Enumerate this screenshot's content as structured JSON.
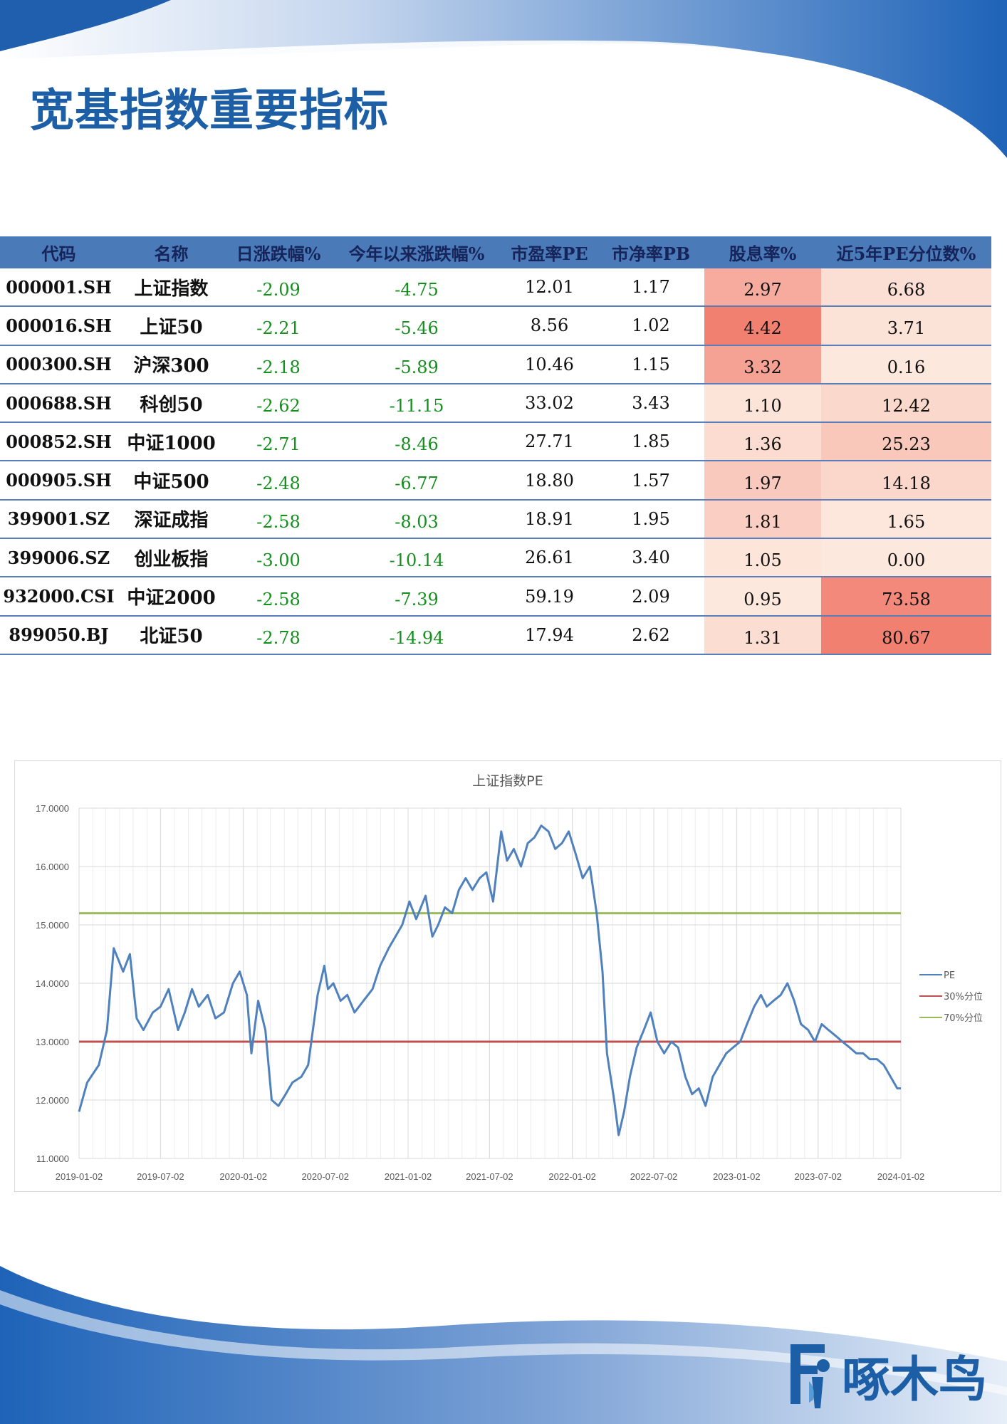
{
  "page": {
    "title": "宽基指数重要指标",
    "brand": "啄木鸟"
  },
  "table": {
    "headers": [
      "代码",
      "名称",
      "日涨跌幅%",
      "今年以来涨跌幅%",
      "市盈率PE",
      "市净率PB",
      "股息率%",
      "近5年PE分位数%"
    ],
    "rows": [
      {
        "code": "000001.SH",
        "name": "上证指数",
        "daily": "-2.09",
        "ytd": "-4.75",
        "pe": "12.01",
        "pb": "1.17",
        "div": "2.97",
        "pct": "6.68"
      },
      {
        "code": "000016.SH",
        "name": "上证50",
        "daily": "-2.21",
        "ytd": "-5.46",
        "pe": "8.56",
        "pb": "1.02",
        "div": "4.42",
        "pct": "3.71"
      },
      {
        "code": "000300.SH",
        "name": "沪深300",
        "daily": "-2.18",
        "ytd": "-5.89",
        "pe": "10.46",
        "pb": "1.15",
        "div": "3.32",
        "pct": "0.16"
      },
      {
        "code": "000688.SH",
        "name": "科创50",
        "daily": "-2.62",
        "ytd": "-11.15",
        "pe": "33.02",
        "pb": "3.43",
        "div": "1.10",
        "pct": "12.42"
      },
      {
        "code": "000852.SH",
        "name": "中证1000",
        "daily": "-2.71",
        "ytd": "-8.46",
        "pe": "27.71",
        "pb": "1.85",
        "div": "1.36",
        "pct": "25.23"
      },
      {
        "code": "000905.SH",
        "name": "中证500",
        "daily": "-2.48",
        "ytd": "-6.77",
        "pe": "18.80",
        "pb": "1.57",
        "div": "1.97",
        "pct": "14.18"
      },
      {
        "code": "399001.SZ",
        "name": "深证成指",
        "daily": "-2.58",
        "ytd": "-8.03",
        "pe": "18.91",
        "pb": "1.95",
        "div": "1.81",
        "pct": "1.65"
      },
      {
        "code": "399006.SZ",
        "name": "创业板指",
        "daily": "-3.00",
        "ytd": "-10.14",
        "pe": "26.61",
        "pb": "3.40",
        "div": "1.05",
        "pct": "0.00"
      },
      {
        "code": "932000.CSI",
        "name": "中证2000",
        "daily": "-2.58",
        "ytd": "-7.39",
        "pe": "59.19",
        "pb": "2.09",
        "div": "0.95",
        "pct": "73.58"
      },
      {
        "code": "899050.BJ",
        "name": "北证50",
        "daily": "-2.78",
        "ytd": "-14.94",
        "pe": "17.94",
        "pb": "2.62",
        "div": "1.31",
        "pct": "80.67"
      }
    ]
  },
  "colors": {
    "brand_blue": "#1d5fa6",
    "header_blue": "#4a7ab8",
    "negative_green": "#15901e",
    "heat_low": "#fde6dc",
    "heat_high": "#f28070"
  },
  "chart_data": {
    "type": "line",
    "title": "上证指数PE",
    "xlabel": "",
    "ylabel": "",
    "ylim": [
      11,
      17
    ],
    "y_ticks": [
      "11.0000",
      "12.0000",
      "13.0000",
      "14.0000",
      "15.0000",
      "16.0000",
      "17.0000"
    ],
    "x_ticks": [
      "2019-01-02",
      "2019-07-02",
      "2020-01-02",
      "2020-07-02",
      "2021-01-02",
      "2021-07-02",
      "2022-01-02",
      "2022-07-02",
      "2023-01-02",
      "2023-07-02",
      "2024-01-02"
    ],
    "legend_position": "right",
    "grid": true,
    "series": [
      {
        "name": "PE",
        "color": "#4f81bd",
        "x": [
          "2019-01-02",
          "2019-01-20",
          "2019-02-15",
          "2019-03-05",
          "2019-03-20",
          "2019-04-10",
          "2019-04-25",
          "2019-05-10",
          "2019-05-25",
          "2019-06-15",
          "2019-07-02",
          "2019-07-20",
          "2019-08-10",
          "2019-08-25",
          "2019-09-10",
          "2019-09-25",
          "2019-10-15",
          "2019-11-01",
          "2019-11-20",
          "2019-12-10",
          "2019-12-25",
          "2020-01-10",
          "2020-01-20",
          "2020-02-04",
          "2020-02-20",
          "2020-03-05",
          "2020-03-20",
          "2020-04-05",
          "2020-04-20",
          "2020-05-10",
          "2020-05-25",
          "2020-06-15",
          "2020-06-30",
          "2020-07-08",
          "2020-07-20",
          "2020-08-05",
          "2020-08-20",
          "2020-09-05",
          "2020-09-25",
          "2020-10-15",
          "2020-11-01",
          "2020-11-20",
          "2020-12-05",
          "2020-12-20",
          "2021-01-05",
          "2021-01-20",
          "2021-02-10",
          "2021-02-25",
          "2021-03-10",
          "2021-03-25",
          "2021-04-10",
          "2021-04-25",
          "2021-05-10",
          "2021-05-25",
          "2021-06-10",
          "2021-06-25",
          "2021-07-10",
          "2021-07-28",
          "2021-08-10",
          "2021-08-25",
          "2021-09-10",
          "2021-09-25",
          "2021-10-10",
          "2021-10-25",
          "2021-11-10",
          "2021-11-25",
          "2021-12-10",
          "2021-12-25",
          "2022-01-10",
          "2022-01-25",
          "2022-02-10",
          "2022-02-25",
          "2022-03-10",
          "2022-03-20",
          "2022-04-05",
          "2022-04-15",
          "2022-04-27",
          "2022-05-10",
          "2022-05-25",
          "2022-06-10",
          "2022-06-25",
          "2022-07-10",
          "2022-07-25",
          "2022-08-10",
          "2022-08-25",
          "2022-09-10",
          "2022-09-25",
          "2022-10-10",
          "2022-10-25",
          "2022-11-10",
          "2022-11-25",
          "2022-12-10",
          "2022-12-25",
          "2023-01-10",
          "2023-01-25",
          "2023-02-10",
          "2023-02-25",
          "2023-03-10",
          "2023-03-25",
          "2023-04-10",
          "2023-04-25",
          "2023-05-10",
          "2023-05-25",
          "2023-06-10",
          "2023-06-25",
          "2023-07-10",
          "2023-07-25",
          "2023-08-10",
          "2023-08-25",
          "2023-09-10",
          "2023-09-25",
          "2023-10-10",
          "2023-10-25",
          "2023-11-10",
          "2023-11-25",
          "2023-12-10",
          "2023-12-25",
          "2024-01-02"
        ],
        "values": [
          11.8,
          12.3,
          12.6,
          13.2,
          14.6,
          14.2,
          14.5,
          13.4,
          13.2,
          13.5,
          13.6,
          13.9,
          13.2,
          13.5,
          13.9,
          13.6,
          13.8,
          13.4,
          13.5,
          14.0,
          14.2,
          13.8,
          12.8,
          13.7,
          13.2,
          12.0,
          11.9,
          12.1,
          12.3,
          12.4,
          12.6,
          13.8,
          14.3,
          13.9,
          14.0,
          13.7,
          13.8,
          13.5,
          13.7,
          13.9,
          14.3,
          14.6,
          14.8,
          15.0,
          15.4,
          15.1,
          15.5,
          14.8,
          15.0,
          15.3,
          15.2,
          15.6,
          15.8,
          15.6,
          15.8,
          15.9,
          15.4,
          16.6,
          16.1,
          16.3,
          16.0,
          16.4,
          16.5,
          16.7,
          16.6,
          16.3,
          16.4,
          16.6,
          16.2,
          15.8,
          16.0,
          15.2,
          14.2,
          12.8,
          12.0,
          11.4,
          11.8,
          12.4,
          12.9,
          13.2,
          13.5,
          13.0,
          12.8,
          13.0,
          12.9,
          12.4,
          12.1,
          12.2,
          11.9,
          12.4,
          12.6,
          12.8,
          12.9,
          13.0,
          13.3,
          13.6,
          13.8,
          13.6,
          13.7,
          13.8,
          14.0,
          13.7,
          13.3,
          13.2,
          13.0,
          13.3,
          13.2,
          13.1,
          13.0,
          12.9,
          12.8,
          12.8,
          12.7,
          12.7,
          12.6,
          12.4,
          12.2,
          12.2
        ]
      },
      {
        "name": "30%分位",
        "color": "#c0504d",
        "x": [
          "2019-01-02",
          "2024-01-02"
        ],
        "values": [
          13.0,
          13.0
        ]
      },
      {
        "name": "70%分位",
        "color": "#9bbb59",
        "x": [
          "2019-01-02",
          "2024-01-02"
        ],
        "values": [
          15.2,
          15.2
        ]
      }
    ]
  }
}
